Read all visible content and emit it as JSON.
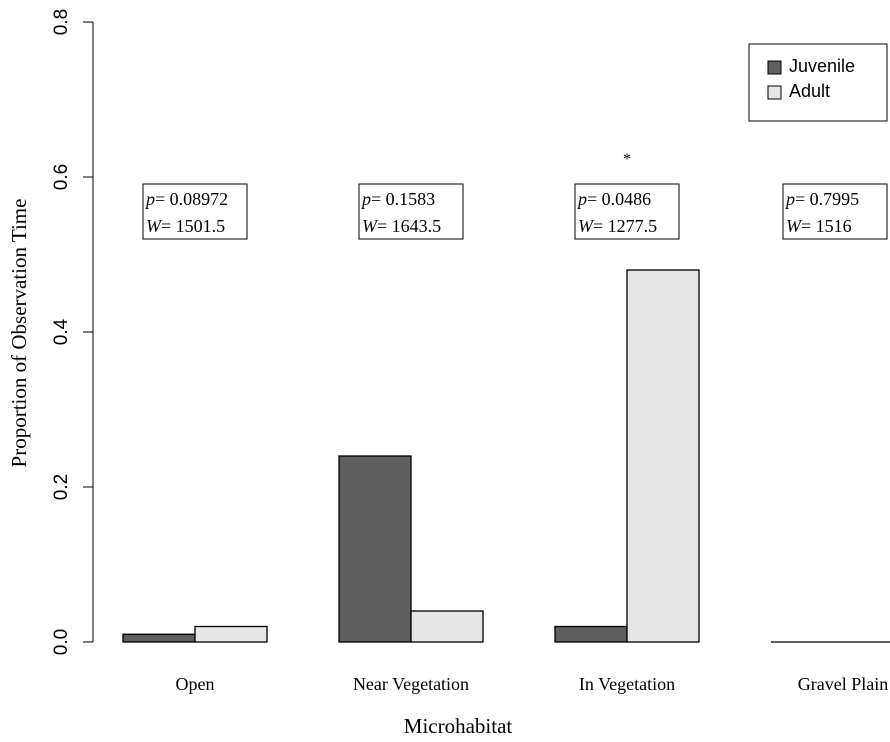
{
  "chart_data": {
    "type": "bar",
    "xlabel": "Microhabitat",
    "ylabel": "Proportion of Observation Time",
    "ylim": [
      0,
      0.8
    ],
    "yticks": [
      "0.0",
      "0.2",
      "0.4",
      "0.6",
      "0.8"
    ],
    "categories": [
      "Open",
      "Near Vegetation",
      "In Vegetation",
      "Gravel Plain"
    ],
    "series": [
      {
        "name": "Juvenile",
        "color": "#5f5f5f",
        "values": [
          0.01,
          0.24,
          0.02,
          0.0
        ]
      },
      {
        "name": "Adult",
        "color": "#e6e6e6",
        "values": [
          0.02,
          0.04,
          0.48,
          0.0
        ]
      }
    ],
    "legend_position": "top-right",
    "grid": false,
    "annotations": [
      {
        "category": "Open",
        "p_label": "p",
        "p_value": "= 0.08972",
        "w_label": "W",
        "w_value": "= 1501.5",
        "marker": ""
      },
      {
        "category": "Near Vegetation",
        "p_label": "p",
        "p_value": "= 0.1583",
        "w_label": "W",
        "w_value": "= 1643.5",
        "marker": ""
      },
      {
        "category": "In Vegetation",
        "p_label": "p",
        "p_value": "= 0.0486",
        "w_label": "W",
        "w_value": "= 1277.5",
        "marker": "*"
      },
      {
        "category": "Gravel Plain",
        "p_label": "p",
        "p_value": "= 0.7995",
        "w_label": "W",
        "w_value": "= 1516",
        "marker": ""
      }
    ]
  }
}
